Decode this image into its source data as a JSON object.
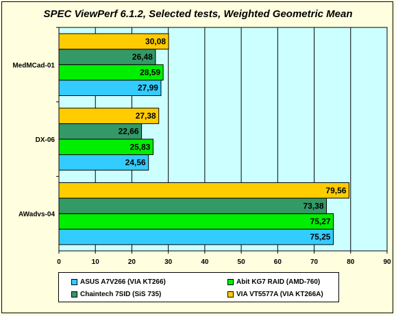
{
  "chart_data": {
    "type": "bar",
    "orientation": "horizontal",
    "title": "SPEC ViewPerf 6.1.2, Selected tests, Weighted Geometric Mean",
    "categories": [
      "MedMCad-01",
      "DX-06",
      "AWadvs-04"
    ],
    "series": [
      {
        "name": "ASUS A7V266 (VIA KT266)",
        "color": "#33ccff",
        "values": [
          27.99,
          24.56,
          75.25
        ],
        "labels": [
          "27,99",
          "24,56",
          "75,25"
        ]
      },
      {
        "name": "Abit KG7 RAID (AMD-760)",
        "color": "#00ee00",
        "values": [
          28.59,
          25.83,
          75.27
        ],
        "labels": [
          "28,59",
          "25,83",
          "75,27"
        ]
      },
      {
        "name": "Chaintech 7SID (SiS 735)",
        "color": "#339966",
        "values": [
          26.48,
          22.66,
          73.38
        ],
        "labels": [
          "26,48",
          "22,66",
          "73,38"
        ]
      },
      {
        "name": "VIA VT5577A (VIA KT266A)",
        "color": "#ffcc00",
        "values": [
          30.08,
          27.38,
          79.56
        ],
        "labels": [
          "30,08",
          "27,38",
          "79,56"
        ]
      }
    ],
    "xlim": [
      0,
      90
    ],
    "xticks": [
      0,
      10,
      20,
      30,
      40,
      50,
      60,
      70,
      80,
      90
    ],
    "grid": true,
    "plot_background": "#ccffff",
    "legend_position": "bottom"
  }
}
